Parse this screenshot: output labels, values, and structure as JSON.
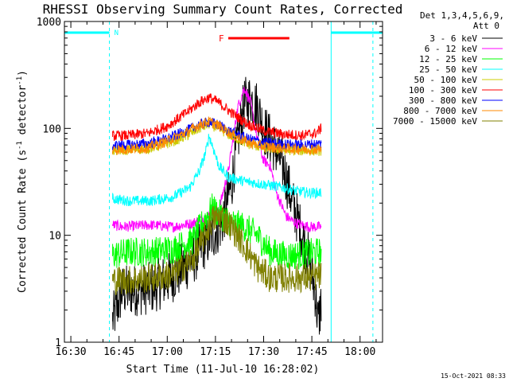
{
  "chart_data": {
    "type": "line",
    "title": "RHESSI Observing Summary Count Rates, Corrected",
    "xlabel": "Start Time (11-Jul-10 16:28:02)",
    "ylabel_main": "Corrected Count Rate (s",
    "ylabel_sup1": "-1",
    "ylabel_mid": " detector",
    "ylabel_sup2": "-1",
    "ylabel_end": ")",
    "y_scale": "log",
    "ylim": [
      1,
      1000
    ],
    "xlim": [
      "16:28",
      "18:07"
    ],
    "x_ticks": [
      {
        "t": 30,
        "label": "16:30"
      },
      {
        "t": 45,
        "label": "16:45"
      },
      {
        "t": 60,
        "label": "17:00"
      },
      {
        "t": 75,
        "label": "17:15"
      },
      {
        "t": 90,
        "label": "17:30"
      },
      {
        "t": 105,
        "label": "17:45"
      },
      {
        "t": 120,
        "label": "18:00"
      }
    ],
    "y_ticks": [
      {
        "v": 1,
        "label": "1"
      },
      {
        "v": 10,
        "label": "10"
      },
      {
        "v": 100,
        "label": "100"
      },
      {
        "v": 1000,
        "label": "1000"
      }
    ],
    "legend_header": [
      "Det 1,3,4,5,6,9,",
      "Att 0"
    ],
    "legend_placement": "right",
    "series": [
      {
        "name": "3 - 6 keV",
        "color": "#000000",
        "points": [
          [
            43,
            1.6
          ],
          [
            46,
            3
          ],
          [
            55,
            3.2
          ],
          [
            62,
            4.2
          ],
          [
            68,
            6
          ],
          [
            71,
            8
          ],
          [
            74,
            10
          ],
          [
            77,
            13
          ],
          [
            80,
            30
          ],
          [
            82,
            80
          ],
          [
            84,
            170
          ],
          [
            86,
            190
          ],
          [
            88,
            160
          ],
          [
            90,
            100
          ],
          [
            93,
            70
          ],
          [
            96,
            45
          ],
          [
            99,
            20
          ],
          [
            102,
            10
          ],
          [
            104,
            6
          ],
          [
            106,
            3
          ],
          [
            107,
            1.5
          ],
          [
            108,
            2.5
          ]
        ]
      },
      {
        "name": "6 - 12 keV",
        "color": "#ff00ff",
        "points": [
          [
            43,
            12.5
          ],
          [
            46,
            12
          ],
          [
            55,
            12.5
          ],
          [
            62,
            12
          ],
          [
            68,
            13
          ],
          [
            72,
            15
          ],
          [
            76,
            17
          ],
          [
            79,
            40
          ],
          [
            82,
            160
          ],
          [
            84,
            240
          ],
          [
            86,
            170
          ],
          [
            88,
            80
          ],
          [
            90,
            50
          ],
          [
            92,
            45
          ],
          [
            94,
            25
          ],
          [
            97,
            15
          ],
          [
            100,
            13
          ],
          [
            104,
            12
          ],
          [
            108,
            12
          ]
        ]
      },
      {
        "name": "12 - 25 keV",
        "color": "#00ff00",
        "points": [
          [
            43,
            6.5
          ],
          [
            48,
            7
          ],
          [
            55,
            7
          ],
          [
            62,
            7.5
          ],
          [
            68,
            9
          ],
          [
            71,
            13
          ],
          [
            74,
            18
          ],
          [
            76,
            16
          ],
          [
            80,
            13
          ],
          [
            84,
            12
          ],
          [
            88,
            10
          ],
          [
            92,
            7
          ],
          [
            96,
            6.5
          ],
          [
            100,
            6.5
          ],
          [
            104,
            6.8
          ],
          [
            108,
            7
          ]
        ]
      },
      {
        "name": "25 - 50 keV",
        "color": "#00ffff",
        "points": [
          [
            43,
            22
          ],
          [
            48,
            21
          ],
          [
            55,
            21
          ],
          [
            62,
            23
          ],
          [
            67,
            28
          ],
          [
            70,
            40
          ],
          [
            72,
            60
          ],
          [
            73,
            85
          ],
          [
            74,
            70
          ],
          [
            76,
            45
          ],
          [
            79,
            35
          ],
          [
            84,
            32
          ],
          [
            90,
            30
          ],
          [
            96,
            28
          ],
          [
            100,
            26
          ],
          [
            104,
            25
          ],
          [
            108,
            25
          ]
        ]
      },
      {
        "name": "50 - 100 keV",
        "color": "#cccc00",
        "points": [
          [
            43,
            62
          ],
          [
            48,
            63
          ],
          [
            54,
            65
          ],
          [
            60,
            72
          ],
          [
            66,
            85
          ],
          [
            70,
            100
          ],
          [
            73,
            110
          ],
          [
            76,
            100
          ],
          [
            80,
            85
          ],
          [
            85,
            72
          ],
          [
            90,
            66
          ],
          [
            96,
            63
          ],
          [
            102,
            62
          ],
          [
            108,
            62
          ]
        ]
      },
      {
        "name": "100 - 300 keV",
        "color": "#ff0000",
        "points": [
          [
            43,
            85
          ],
          [
            48,
            86
          ],
          [
            54,
            90
          ],
          [
            60,
            105
          ],
          [
            66,
            140
          ],
          [
            70,
            175
          ],
          [
            73,
            195
          ],
          [
            76,
            175
          ],
          [
            80,
            140
          ],
          [
            85,
            110
          ],
          [
            90,
            95
          ],
          [
            96,
            88
          ],
          [
            102,
            86
          ],
          [
            106,
            90
          ],
          [
            108,
            100
          ]
        ]
      },
      {
        "name": "300 - 800 keV",
        "color": "#0000ff",
        "points": [
          [
            43,
            69
          ],
          [
            48,
            70
          ],
          [
            54,
            72
          ],
          [
            60,
            80
          ],
          [
            66,
            95
          ],
          [
            70,
            108
          ],
          [
            73,
            115
          ],
          [
            76,
            108
          ],
          [
            80,
            92
          ],
          [
            85,
            80
          ],
          [
            90,
            74
          ],
          [
            96,
            71
          ],
          [
            102,
            70
          ],
          [
            108,
            72
          ]
        ]
      },
      {
        "name": "800 - 7000 keV",
        "color": "#ff8800",
        "points": [
          [
            43,
            63
          ],
          [
            48,
            64
          ],
          [
            54,
            66
          ],
          [
            60,
            76
          ],
          [
            66,
            92
          ],
          [
            70,
            108
          ],
          [
            73,
            116
          ],
          [
            76,
            106
          ],
          [
            80,
            88
          ],
          [
            85,
            74
          ],
          [
            90,
            68
          ],
          [
            96,
            65
          ],
          [
            102,
            64
          ],
          [
            108,
            64
          ]
        ]
      },
      {
        "name": "7000 - 15000 keV",
        "color": "#808000",
        "points": [
          [
            43,
            3.8
          ],
          [
            48,
            3.8
          ],
          [
            55,
            4
          ],
          [
            62,
            4.3
          ],
          [
            68,
            6
          ],
          [
            71,
            9
          ],
          [
            74,
            14
          ],
          [
            77,
            15
          ],
          [
            80,
            12
          ],
          [
            84,
            8
          ],
          [
            88,
            5
          ],
          [
            92,
            4
          ],
          [
            96,
            4
          ],
          [
            100,
            4
          ],
          [
            104,
            4
          ],
          [
            108,
            4.2
          ]
        ]
      }
    ],
    "annotations": {
      "n_label": "N",
      "f_label": "F",
      "n_color": "#00ffff",
      "f_color": "#ff0000",
      "n_segments": [
        [
          28,
          42
        ],
        [
          111,
          127
        ]
      ],
      "f_segment": [
        79,
        98
      ],
      "saa_dashed_times": [
        42,
        124
      ],
      "solid_times": [
        28,
        111
      ]
    }
  },
  "footer": {
    "date_stamp": "15-Oct-2021 08:33"
  }
}
